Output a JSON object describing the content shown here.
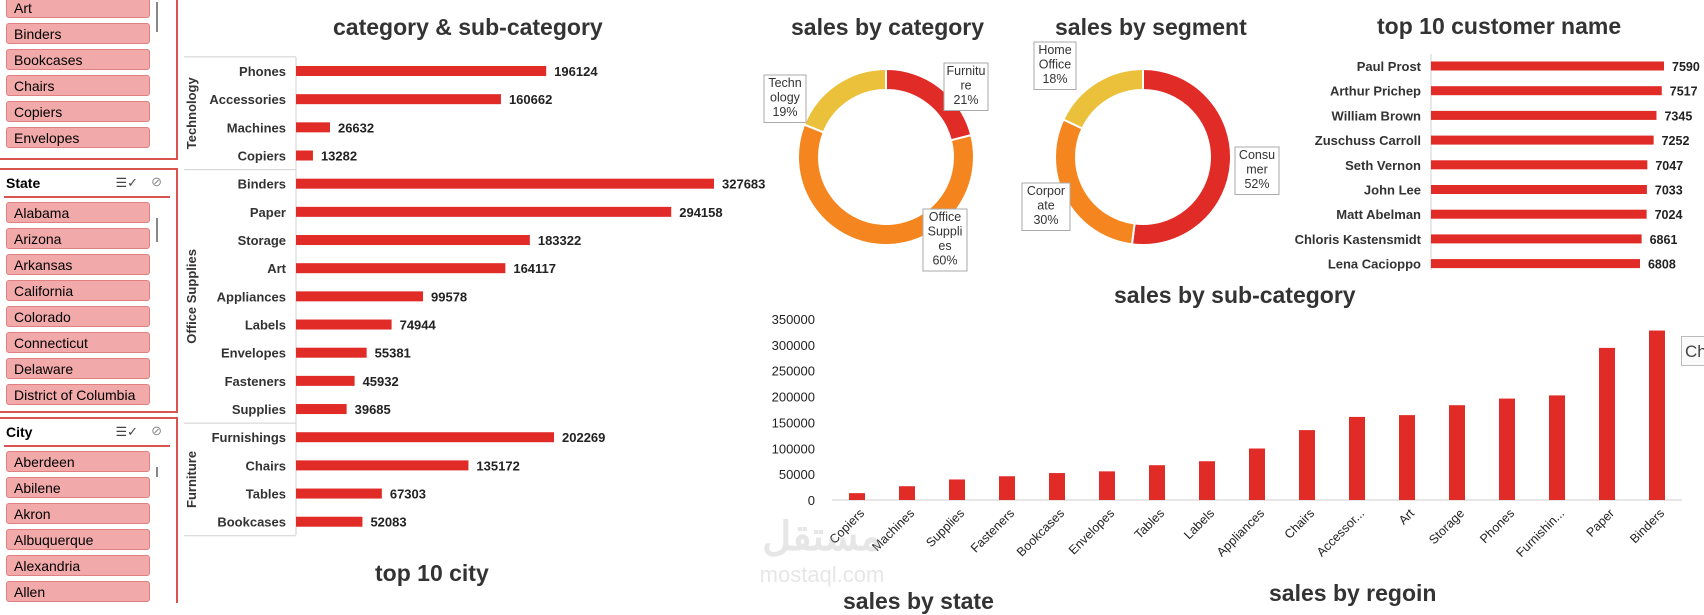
{
  "slicers": {
    "sub_category": {
      "items": [
        "Art",
        "Binders",
        "Bookcases",
        "Chairs",
        "Copiers",
        "Envelopes"
      ]
    },
    "state": {
      "title": "State",
      "items": [
        "Alabama",
        "Arizona",
        "Arkansas",
        "California",
        "Colorado",
        "Connecticut",
        "Delaware",
        "District of Columbia"
      ]
    },
    "city": {
      "title": "City",
      "items": [
        "Aberdeen",
        "Abilene",
        "Akron",
        "Albuquerque",
        "Alexandria",
        "Allen"
      ]
    }
  },
  "watermark": {
    "arabic": "مستقل",
    "latin": "mostaql.com"
  },
  "tooltip_fragment": "Ch",
  "chart_data": [
    {
      "type": "bar",
      "orientation": "horizontal",
      "title": "category & sub-category",
      "groups": [
        {
          "name": "Technology",
          "categories": [
            "Phones",
            "Accessories",
            "Machines",
            "Copiers"
          ],
          "values": [
            196124,
            160662,
            26632,
            13282
          ]
        },
        {
          "name": "Office Supplies",
          "categories": [
            "Binders",
            "Paper",
            "Storage",
            "Art",
            "Appliances",
            "Labels",
            "Envelopes",
            "Fasteners",
            "Supplies"
          ],
          "values": [
            327683,
            294158,
            183322,
            164117,
            99578,
            74944,
            55381,
            45932,
            39685
          ]
        },
        {
          "name": "Furniture",
          "categories": [
            "Furnishings",
            "Chairs",
            "Tables",
            "Bookcases"
          ],
          "values": [
            202269,
            135172,
            67303,
            52083
          ]
        }
      ],
      "color": "#e02b27"
    },
    {
      "type": "pie",
      "donut": true,
      "title": "sales by category",
      "slices": [
        {
          "label": "Furniture",
          "label_lines": [
            "Furnitu",
            "re",
            "21%"
          ],
          "value": 21,
          "color": "#e02b27"
        },
        {
          "label": "Office Supplies",
          "label_lines": [
            "Office",
            "Suppli",
            "es",
            "60%"
          ],
          "value": 60,
          "color": "#f5851f"
        },
        {
          "label": "Technology",
          "label_lines": [
            "Techn",
            "ology",
            "19%"
          ],
          "value": 19,
          "color": "#ebc03a"
        }
      ]
    },
    {
      "type": "pie",
      "donut": true,
      "title": "sales by segment",
      "slices": [
        {
          "label": "Consumer",
          "label_lines": [
            "Consu",
            "mer",
            "52%"
          ],
          "value": 52,
          "color": "#e02b27"
        },
        {
          "label": "Corporate",
          "label_lines": [
            "Corpor",
            "ate",
            "30%"
          ],
          "value": 30,
          "color": "#f5851f"
        },
        {
          "label": "Home Office",
          "label_lines": [
            "Home",
            "Office",
            "18%"
          ],
          "value": 18,
          "color": "#ebc03a"
        }
      ]
    },
    {
      "type": "bar",
      "orientation": "horizontal",
      "title": "top 10 customer name",
      "categories": [
        "Paul Prost",
        "Arthur Prichep",
        "William Brown",
        "Zuschuss Carroll",
        "Seth Vernon",
        "John Lee",
        "Matt Abelman",
        "Chloris Kastensmidt",
        "Lena Cacioppo"
      ],
      "values": [
        7590,
        7517,
        7345,
        7252,
        7047,
        7033,
        7024,
        6861,
        6808
      ],
      "color": "#e02b27"
    },
    {
      "type": "bar",
      "title": "sales by sub-category",
      "categories": [
        "Copiers",
        "Machines",
        "Supplies",
        "Fasteners",
        "Bookcases",
        "Envelopes",
        "Tables",
        "Labels",
        "Appliances",
        "Chairs",
        "Accessor...",
        "Art",
        "Storage",
        "Phones",
        "Furnishin...",
        "Paper",
        "Binders"
      ],
      "values": [
        13282,
        26632,
        39685,
        45932,
        52083,
        55381,
        67303,
        74944,
        99578,
        135172,
        160662,
        164117,
        183322,
        196124,
        202269,
        294158,
        327683
      ],
      "yticks": [
        0,
        50000,
        100000,
        150000,
        200000,
        250000,
        300000,
        350000
      ],
      "ylim": [
        0,
        350000
      ],
      "color": "#e02b27"
    },
    {
      "type": "table",
      "title": "top 10 city"
    },
    {
      "type": "table",
      "title": "sales by state"
    },
    {
      "type": "table",
      "title": "sales by regoin"
    }
  ]
}
